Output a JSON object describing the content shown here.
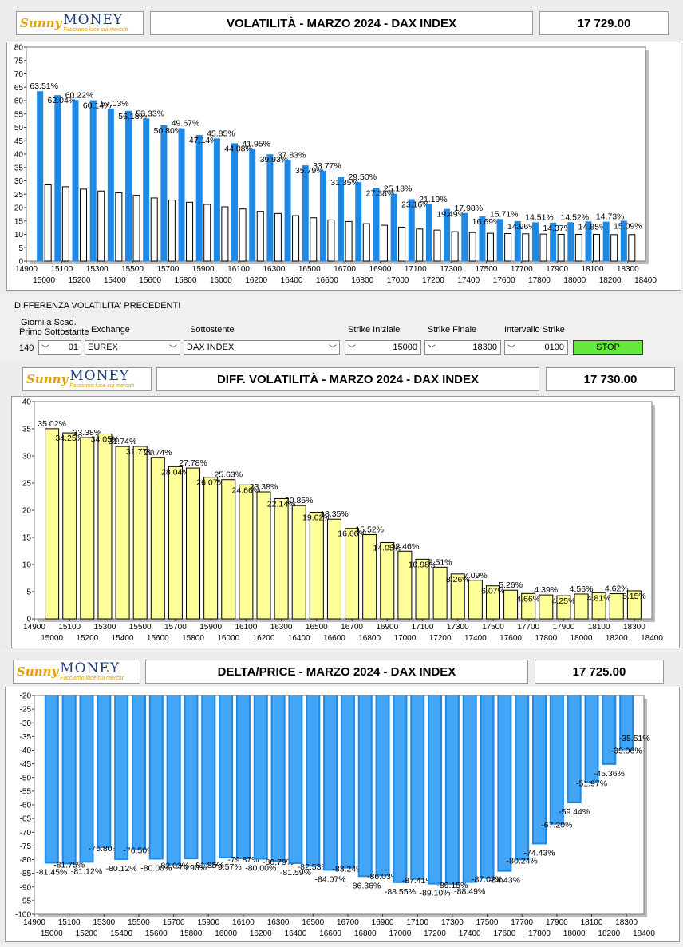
{
  "brand": {
    "name": "MONEY",
    "sunny": "Sunny",
    "tagline": "Facciamo luce sui mercati"
  },
  "colors": {
    "blue": "#1e88e5",
    "yellow": "#ffff99",
    "white_bar": "#ffffff"
  },
  "x_axis": {
    "odd_ticks": [
      "14900",
      "15100",
      "15300",
      "15500",
      "15700",
      "15900",
      "16100",
      "16300",
      "16500",
      "16700",
      "16900",
      "17100",
      "17300",
      "17500",
      "17700",
      "17900",
      "18100",
      "18300"
    ],
    "even_ticks": [
      "15000",
      "15200",
      "15400",
      "15600",
      "15800",
      "16000",
      "16200",
      "16400",
      "16600",
      "16800",
      "17000",
      "17200",
      "17400",
      "17600",
      "17800",
      "18000",
      "18200",
      "18400"
    ]
  },
  "charts": [
    {
      "title": "VOLATILITÀ - MARZO 2024 - DAX INDEX",
      "price": "17 729.00"
    },
    {
      "title": "DIFF. VOLATILITÀ - MARZO 2024 - DAX INDEX",
      "price": "17 730.00"
    },
    {
      "title": "DELTA/PRICE - MARZO 2024 - DAX INDEX",
      "price": "17 725.00"
    }
  ],
  "controls": {
    "section_title": "DIFFERENZA VOLATILITA' PRECEDENTI",
    "days_label_1": "Giorni a Scad.",
    "days_label_2": "Primo Sottostante",
    "days_value": "140",
    "days_select": "01",
    "exchange_label": "Exchange",
    "exchange_value": "EUREX",
    "underlying_label": "Sottostente",
    "underlying_value": "DAX INDEX",
    "strike_start_label": "Strike Iniziale",
    "strike_start_value": "15000",
    "strike_end_label": "Strike Finale",
    "strike_end_value": "18300",
    "interval_label": "Intervallo Strike",
    "interval_value": "0100",
    "stop_label": "STOP"
  },
  "chart_data": [
    {
      "type": "bar",
      "title": "VOLATILITÀ - MARZO 2024 - DAX INDEX",
      "x": [
        15000,
        15100,
        15200,
        15300,
        15400,
        15500,
        15600,
        15700,
        15800,
        15900,
        16000,
        16100,
        16200,
        16300,
        16400,
        16500,
        16600,
        16700,
        16800,
        16900,
        17000,
        17100,
        17200,
        17300,
        17400,
        17500,
        17600,
        17700,
        17800,
        17900,
        18000,
        18100,
        18200,
        18300
      ],
      "ylim": [
        0,
        80
      ],
      "yticks": [
        0,
        5,
        10,
        15,
        20,
        25,
        30,
        35,
        40,
        45,
        50,
        55,
        60,
        65,
        70,
        75,
        80
      ],
      "series": [
        {
          "color": "#1e88e5",
          "values": [
            63.51,
            62.04,
            60.22,
            60.14,
            57.03,
            56.18,
            53.33,
            50.8,
            49.67,
            47.14,
            45.85,
            44.08,
            41.95,
            39.93,
            37.83,
            35.79,
            33.77,
            31.35,
            29.5,
            27.38,
            25.18,
            23.16,
            21.19,
            19.49,
            17.98,
            16.69,
            15.71,
            14.96,
            14.51,
            14.37,
            14.52,
            14.85,
            14.73,
            15.09
          ]
        },
        {
          "color": "#ffffff",
          "values": [
            28.5,
            27.8,
            26.9,
            26.2,
            25.5,
            24.6,
            23.6,
            22.8,
            22.0,
            21.2,
            20.3,
            19.5,
            18.6,
            17.8,
            17.0,
            16.2,
            15.4,
            14.8,
            14.0,
            13.4,
            12.7,
            12.0,
            11.6,
            11.0,
            10.7,
            10.4,
            10.3,
            10.2,
            10.1,
            10.0,
            10.0,
            10.0,
            9.9,
            9.9
          ]
        }
      ],
      "labels": [
        "63.51%",
        "62.04%",
        "60.22%",
        "60.14%",
        "57.03%",
        "56.18%",
        "53.33%",
        "50.80%",
        "49.67%",
        "47.14%",
        "45.85%",
        "44.08%",
        "41.95%",
        "39.93%",
        "37.83%",
        "35.79%",
        "33.77%",
        "31.35%",
        "29.50%",
        "27.38%",
        "25.18%",
        "23.16%",
        "21.19%",
        "19.49%",
        "17.98%",
        "16.69%",
        "15.71%",
        "14.96%",
        "14.51%",
        "14.37%",
        "14.52%",
        "14.85%",
        "14.73%",
        "15.09%"
      ]
    },
    {
      "type": "bar",
      "title": "DIFF. VOLATILITÀ - MARZO 2024 - DAX INDEX",
      "x": [
        15000,
        15100,
        15200,
        15300,
        15400,
        15500,
        15600,
        15700,
        15800,
        15900,
        16000,
        16100,
        16200,
        16300,
        16400,
        16500,
        16600,
        16700,
        16800,
        16900,
        17000,
        17100,
        17200,
        17300,
        17400,
        17500,
        17600,
        17700,
        17800,
        17900,
        18000,
        18100,
        18200,
        18300
      ],
      "ylim": [
        0,
        40
      ],
      "yticks": [
        0,
        5,
        10,
        15,
        20,
        25,
        30,
        35,
        40
      ],
      "series": [
        {
          "color": "#ffff99",
          "values": [
            35.02,
            34.25,
            33.38,
            34.05,
            31.74,
            31.77,
            29.74,
            28.04,
            27.78,
            26.07,
            25.63,
            24.66,
            23.38,
            22.14,
            20.85,
            19.62,
            18.35,
            16.66,
            15.52,
            14.05,
            12.46,
            10.98,
            9.51,
            8.26,
            7.09,
            6.07,
            5.26,
            4.66,
            4.39,
            4.25,
            4.56,
            4.81,
            4.62,
            5.15
          ]
        }
      ],
      "labels": [
        "35.02%",
        "34.25%",
        "33.38%",
        "34.05%",
        "31.74%",
        "31.77%",
        "29.74%",
        "28.04%",
        "27.78%",
        "26.07%",
        "25.63%",
        "24.66%",
        "23.38%",
        "22.14%",
        "20.85%",
        "19.62%",
        "18.35%",
        "16.66%",
        "15.52%",
        "14.05%",
        "12.46%",
        "10.98%",
        "9.51%",
        "8.26%",
        "7.09%",
        "6.07%",
        "5.26%",
        "4.66%",
        "4.39%",
        "4.25%",
        "4.56%",
        "4.81%",
        "4.62%",
        "5.15%"
      ]
    },
    {
      "type": "bar",
      "title": "DELTA/PRICE - MARZO 2024 - DAX INDEX",
      "x": [
        15000,
        15100,
        15200,
        15300,
        15400,
        15500,
        15600,
        15700,
        15800,
        15900,
        16000,
        16100,
        16200,
        16300,
        16400,
        16500,
        16600,
        16700,
        16800,
        16900,
        17000,
        17100,
        17200,
        17300,
        17400,
        17500,
        17600,
        17700,
        17800,
        17900,
        18000,
        18100,
        18200,
        18300
      ],
      "ylim": [
        -100,
        -20
      ],
      "yticks": [
        -20,
        -25,
        -30,
        -35,
        -40,
        -45,
        -50,
        -55,
        -60,
        -65,
        -70,
        -75,
        -80,
        -85,
        -90,
        -95,
        -100
      ],
      "series": [
        {
          "color": "#1e88e5",
          "values": [
            -81.45,
            -81.75,
            -81.12,
            -75.8,
            -80.12,
            -76.5,
            -80.0,
            -82.03,
            -79.9,
            -81.85,
            -79.57,
            -79.87,
            -80.0,
            -80.79,
            -81.59,
            -82.53,
            -84.07,
            -83.24,
            -86.36,
            -86.03,
            -88.55,
            -87.41,
            -89.1,
            -89.15,
            -88.49,
            -87.02,
            -84.43,
            -80.24,
            -74.43,
            -67.2,
            -59.44,
            -51.97,
            -45.36,
            -39.96
          ]
        }
      ],
      "labels": [
        "-81.45%",
        "-81.75%",
        "-81.12%",
        "-75.80%",
        "-80.12%",
        "-76.50%",
        "-80.00%",
        "-82.03%",
        "-79.90%",
        "-81.85%",
        "-79.57%",
        "-79.87%",
        "-80.00%",
        "-80.79%",
        "-81.59%",
        "-82.53%",
        "-84.07%",
        "-83.24%",
        "-86.36%",
        "-86.03%",
        "-88.55%",
        "-87.41%",
        "-89.10%",
        "-89.15%",
        "-88.49%",
        "-87.02%",
        "-84.43%",
        "-80.24%",
        "-74.43%",
        "-67.20%",
        "-59.44%",
        "-51.97%",
        "-45.36%",
        "-39.96%"
      ],
      "last_label": "-35.51%"
    }
  ]
}
